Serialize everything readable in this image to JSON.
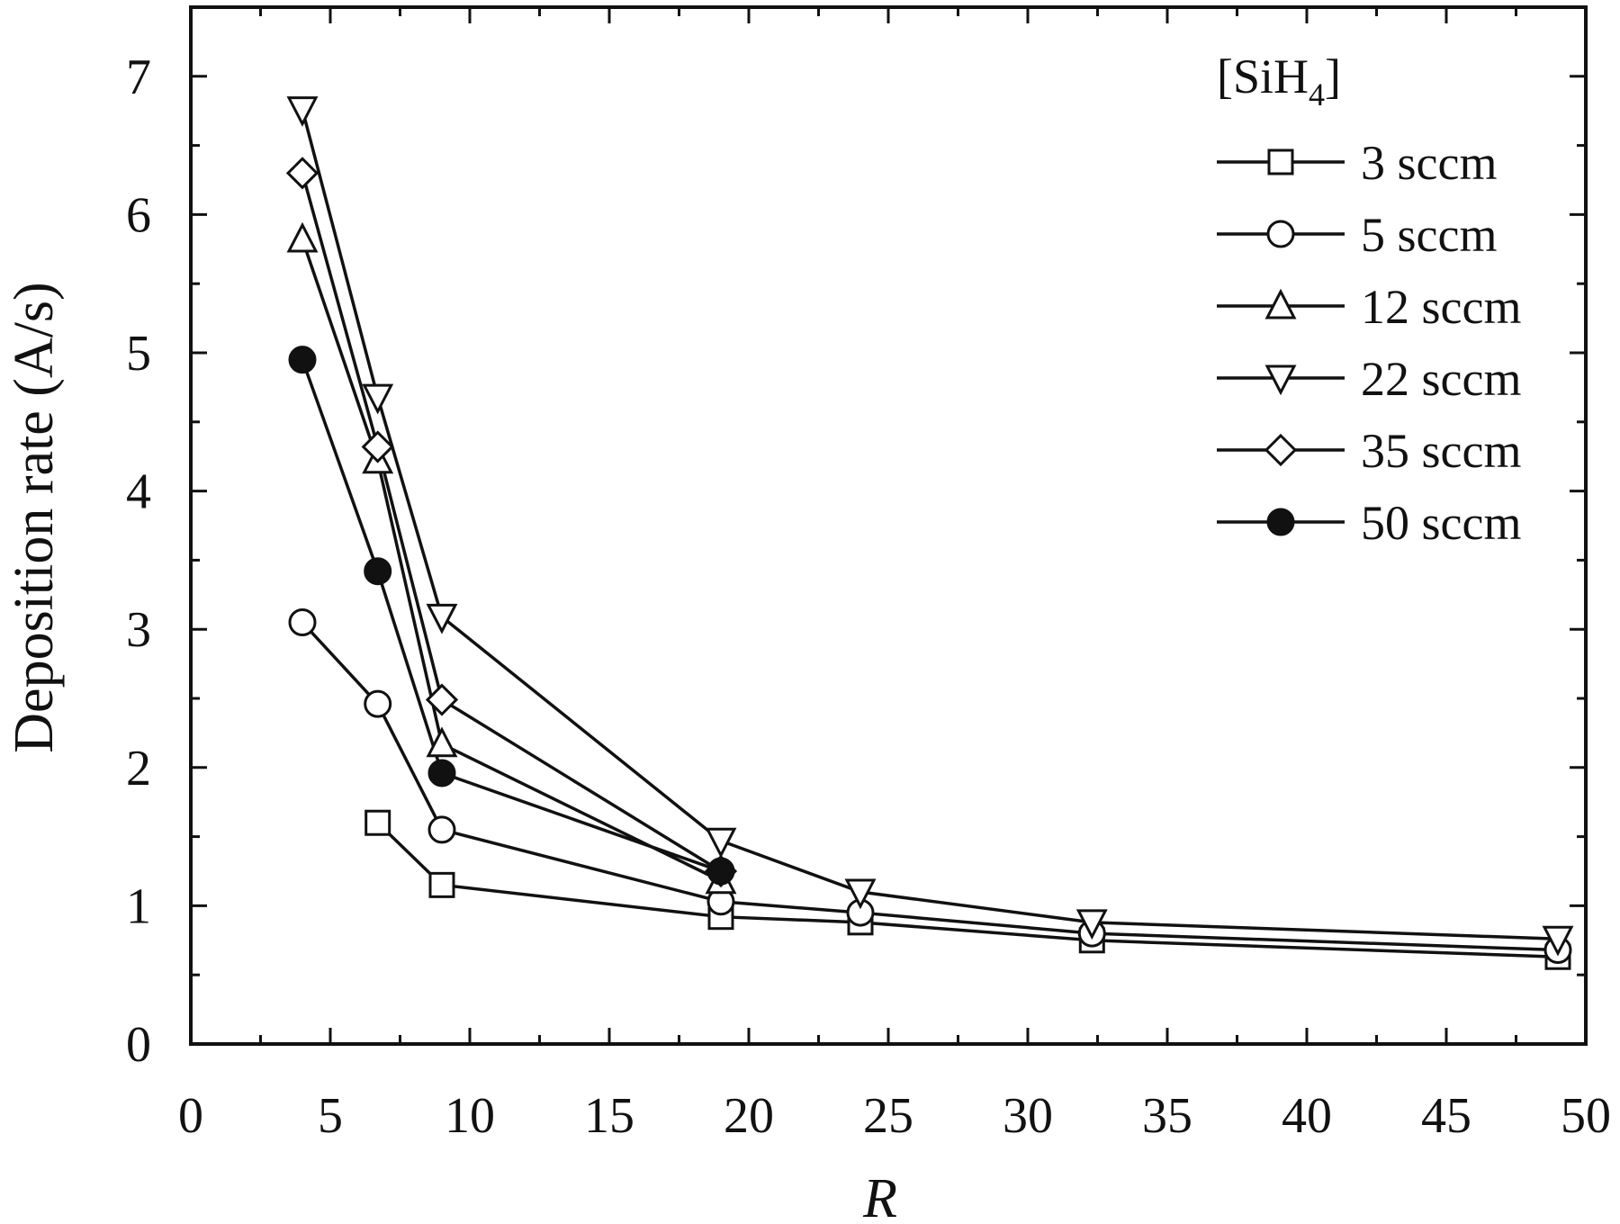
{
  "chart_data": {
    "type": "line",
    "xlabel": "R",
    "ylabel": "Deposition rate (A/s)",
    "xlim": [
      0,
      50
    ],
    "ylim": [
      0,
      7.5
    ],
    "xticks": [
      "0",
      "5",
      "10",
      "15",
      "20",
      "25",
      "30",
      "35",
      "40",
      "45",
      "50"
    ],
    "yticks": [
      "0",
      "1",
      "2",
      "3",
      "4",
      "5",
      "6",
      "7"
    ],
    "xtick_values": [
      0,
      5,
      10,
      15,
      20,
      25,
      30,
      35,
      40,
      45,
      50
    ],
    "ytick_values": [
      0,
      1,
      2,
      3,
      4,
      5,
      6,
      7
    ],
    "grid": false,
    "legend": {
      "title_main": "[SiH",
      "title_sub": "4",
      "title_end": "]",
      "placement": "top-right"
    },
    "series": [
      {
        "name": "3 sccm",
        "marker": "square-open",
        "points": [
          [
            6.7,
            1.6
          ],
          [
            9.0,
            1.15
          ],
          [
            19.0,
            0.92
          ],
          [
            24.0,
            0.88
          ],
          [
            32.3,
            0.75
          ],
          [
            49.0,
            0.63
          ]
        ]
      },
      {
        "name": "5 sccm",
        "marker": "circle-open",
        "points": [
          [
            4.0,
            3.05
          ],
          [
            6.7,
            2.46
          ],
          [
            9.0,
            1.55
          ],
          [
            19.0,
            1.03
          ],
          [
            24.0,
            0.95
          ],
          [
            32.3,
            0.8
          ],
          [
            49.0,
            0.68
          ]
        ]
      },
      {
        "name": "12 sccm",
        "marker": "triangle-up-open",
        "points": [
          [
            4.0,
            5.82
          ],
          [
            6.7,
            4.22
          ],
          [
            9.0,
            2.17
          ],
          [
            19.0,
            1.18
          ]
        ]
      },
      {
        "name": "22 sccm",
        "marker": "triangle-down-open",
        "points": [
          [
            4.0,
            6.76
          ],
          [
            6.7,
            4.68
          ],
          [
            9.0,
            3.09
          ],
          [
            19.0,
            1.47
          ],
          [
            24.0,
            1.1
          ],
          [
            32.3,
            0.88
          ],
          [
            49.0,
            0.76
          ]
        ]
      },
      {
        "name": "35 sccm",
        "marker": "diamond-open",
        "points": [
          [
            4.0,
            6.3
          ],
          [
            6.7,
            4.32
          ],
          [
            9.0,
            2.49
          ],
          [
            19.0,
            1.25
          ]
        ]
      },
      {
        "name": "50 sccm",
        "marker": "circle-filled",
        "points": [
          [
            4.0,
            4.95
          ],
          [
            6.7,
            3.42
          ],
          [
            9.0,
            1.96
          ],
          [
            19.0,
            1.25
          ]
        ]
      }
    ]
  }
}
